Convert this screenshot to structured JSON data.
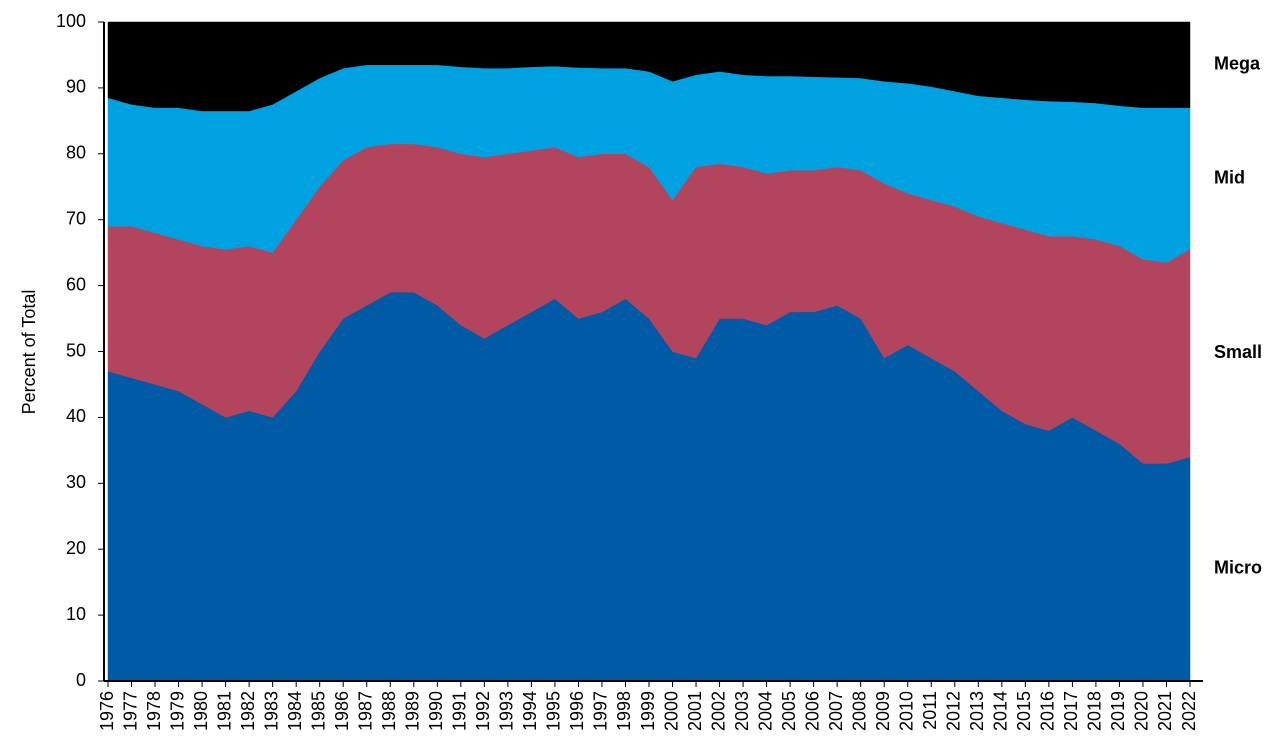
{
  "chart_data": {
    "type": "stacked_area",
    "y_label": "Percent of Total",
    "categories": [
      "1976",
      "1977",
      "1978",
      "1979",
      "1980",
      "1981",
      "1982",
      "1983",
      "1984",
      "1985",
      "1986",
      "1987",
      "1988",
      "1989",
      "1990",
      "1991",
      "1992",
      "1993",
      "1994",
      "1995",
      "1996",
      "1997",
      "1998",
      "1999",
      "2000",
      "2001",
      "2002",
      "2003",
      "2004",
      "2005",
      "2006",
      "2007",
      "2008",
      "2009",
      "2010",
      "2011",
      "2012",
      "2013",
      "2014",
      "2015",
      "2016",
      "2017",
      "2018",
      "2019",
      "2020",
      "2021",
      "2022"
    ],
    "series": [
      {
        "name": "Micro",
        "color": "#005aa6",
        "values": [
          47,
          46,
          45,
          44,
          42,
          40,
          41,
          40,
          44,
          50,
          55,
          57,
          59,
          59,
          57,
          54,
          52,
          54,
          56,
          58,
          55,
          56,
          58,
          55,
          50,
          49,
          55,
          55,
          54,
          56,
          56,
          57,
          55,
          49,
          51,
          49,
          47,
          44,
          41,
          39,
          38,
          40,
          38,
          36,
          33,
          33,
          34
        ]
      },
      {
        "name": "Small",
        "color": "#b3445d",
        "values": [
          22,
          23,
          23,
          23,
          24,
          25.5,
          25,
          25,
          26,
          25,
          24,
          24,
          22.5,
          22.5,
          24,
          26,
          27.5,
          26,
          24.5,
          23,
          24.5,
          24,
          22,
          23,
          23,
          29,
          23.5,
          23,
          23,
          21.5,
          21.5,
          21,
          22.5,
          26.5,
          23,
          24,
          25,
          26.5,
          28.5,
          29.5,
          29.5,
          27.5,
          29,
          30,
          31,
          30.5,
          31.5
        ]
      },
      {
        "name": "Mid",
        "color": "#00a1e0",
        "values": [
          19.5,
          18.5,
          19,
          20,
          20.5,
          21,
          20.5,
          22.5,
          19.5,
          16.5,
          14,
          12.5,
          12,
          12,
          12.5,
          13.2,
          13.5,
          13,
          12.7,
          12.3,
          13.6,
          13,
          13,
          14.5,
          18,
          14,
          14,
          14,
          14.8,
          14.3,
          14.2,
          13.6,
          14,
          15.5,
          16.7,
          17.2,
          17.5,
          18.3,
          19,
          19.7,
          20.5,
          20.4,
          20.7,
          21.3,
          23,
          23.5,
          21.5
        ]
      },
      {
        "name": "Mega",
        "color": "#000000",
        "values": [
          11.5,
          12.5,
          13,
          13,
          13.5,
          13.5,
          13.5,
          12.5,
          10.5,
          8.5,
          7,
          6.5,
          6.5,
          6.5,
          6.5,
          6.8,
          7,
          7,
          6.8,
          6.7,
          6.9,
          7,
          7,
          7.5,
          9,
          8,
          7.5,
          8,
          8.2,
          8.2,
          8.3,
          8.4,
          8.5,
          9,
          9.3,
          9.8,
          10.5,
          11.2,
          11.5,
          11.8,
          12,
          12.1,
          12.3,
          12.7,
          13,
          13,
          13
        ]
      }
    ],
    "ylim": [
      0,
      100
    ],
    "yticks": [
      0,
      10,
      20,
      30,
      40,
      50,
      60,
      70,
      80,
      90,
      100
    ]
  }
}
